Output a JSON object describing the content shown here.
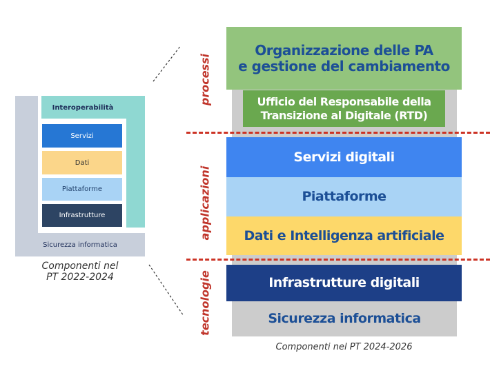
{
  "old": {
    "interoperability": "Interoperabilità",
    "layers": [
      "Servizi",
      "Dati",
      "Piattaforme",
      "Infrastrutture"
    ],
    "security": "Sicurezza informatica",
    "caption_line1": "Componenti nel",
    "caption_line2": "PT 2022-2024"
  },
  "new": {
    "org": "Organizzazione delle PA\ne gestione del cambiamento",
    "rtd": "Ufficio del Responsabile della\nTransizione al Digitale (RTD)",
    "services": "Servizi digitali",
    "platforms": "Piattaforme",
    "data": "Dati e Intelligenza artificiale",
    "infra": "Infrastrutture digitali",
    "security": "Sicurezza informatica",
    "caption": "Componenti nel PT 2024-2026"
  },
  "groups": {
    "processes": "processi",
    "applications": "applicazioni",
    "technologies": "tecnologie"
  },
  "colors": {
    "org": "#93c47d",
    "rtd": "#6aa84f",
    "services": "#3f85f0",
    "platforms": "#a9d3f5",
    "data": "#fdd86a",
    "infra": "#1d3f87",
    "security": "#cccccc",
    "accent": "#cc3325",
    "text_blue": "#1c4f96"
  }
}
